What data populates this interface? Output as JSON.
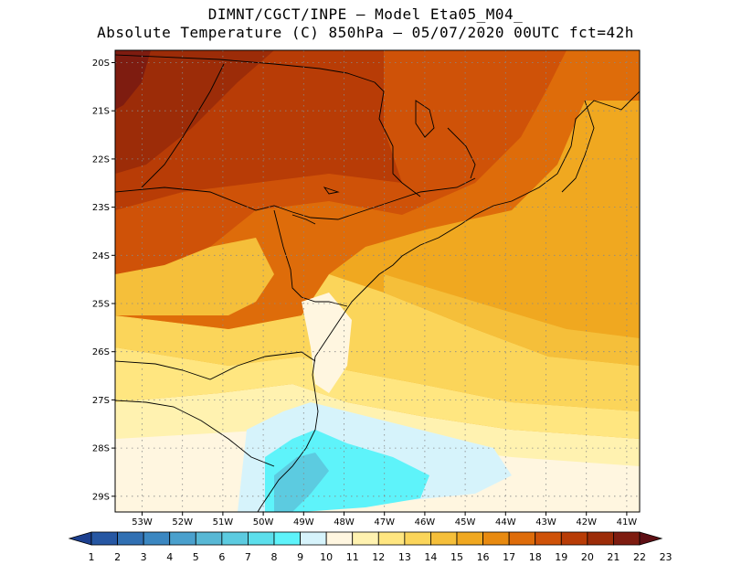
{
  "header": {
    "line1": "DIMNT/CGCT/INPE —  Model Eta05_M04_",
    "line2": "Absolute Temperature (C) 850hPa —  05/07/2020 00UTC fct=42h"
  },
  "map": {
    "lat_labels": [
      "20S",
      "21S",
      "22S",
      "23S",
      "24S",
      "25S",
      "26S",
      "27S",
      "28S",
      "29S"
    ],
    "lon_labels": [
      "53W",
      "52W",
      "51W",
      "50W",
      "49W",
      "48W",
      "47W",
      "46W",
      "45W",
      "44W",
      "43W",
      "42W",
      "41W"
    ]
  },
  "colorbar": {
    "values": [
      "1",
      "2",
      "3",
      "4",
      "5",
      "6",
      "7",
      "8",
      "9",
      "10",
      "11",
      "12",
      "13",
      "14",
      "15",
      "16",
      "17",
      "18",
      "19",
      "20",
      "21",
      "22",
      "23"
    ],
    "colors": [
      "#1c3f8f",
      "#2657a3",
      "#3170b3",
      "#3b87c1",
      "#4aa0cd",
      "#58b8d5",
      "#5ccbe0",
      "#5cdfec",
      "#5ef3fa",
      "#d6f3fb",
      "#fff6e0",
      "#fff2b0",
      "#ffe680",
      "#fbd55a",
      "#f5bf3a",
      "#f0a820",
      "#e88a10",
      "#de6c0a",
      "#cf5208",
      "#b83c06",
      "#9c2c08",
      "#7e1c10",
      "#5e0f14"
    ]
  }
}
